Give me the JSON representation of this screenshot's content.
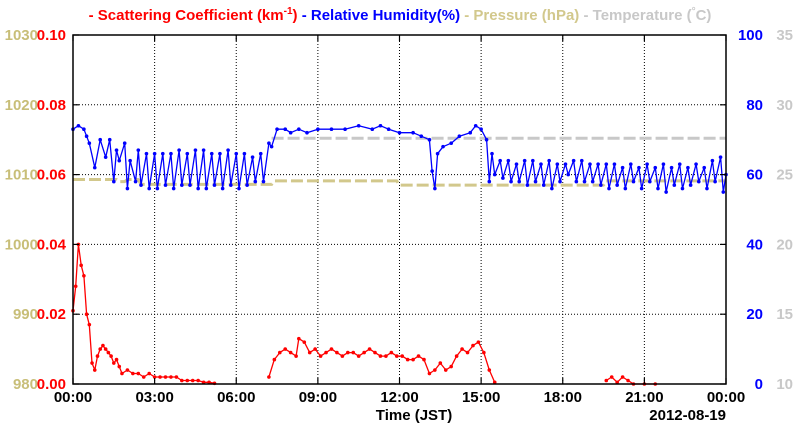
{
  "chart_data": {
    "type": "line",
    "legend": {
      "placement": "top",
      "entries": [
        {
          "label": "Scattering Coefficient (km",
          "sup": "-1",
          "tail": ")",
          "color": "#ff0000"
        },
        {
          "label": "Relative Humidity(%)",
          "color": "#0000ff"
        },
        {
          "label": "Pressure (hPa)",
          "color": "#d2c88c"
        },
        {
          "label": "Temperature (",
          "sup": "°",
          "tail": "C)",
          "color": "#c8c8c8"
        }
      ]
    },
    "xlabel": "Time (JST)",
    "date_label": "2012-08-19",
    "x_unit": "hours",
    "xlim": [
      0,
      24
    ],
    "x_ticks": [
      0,
      3,
      6,
      9,
      12,
      15,
      18,
      21,
      24
    ],
    "x_tick_labels": [
      "00:00",
      "03:00",
      "06:00",
      "09:00",
      "12:00",
      "15:00",
      "18:00",
      "21:00",
      "00:00"
    ],
    "grid": true,
    "axes": {
      "pressure": {
        "side": "left-outer",
        "ylim": [
          980,
          1030
        ],
        "ticks": [
          980,
          990,
          1000,
          1010,
          1020,
          1030
        ],
        "color": "#c8be78"
      },
      "scattering": {
        "side": "left-inner",
        "ylim": [
          0,
          0.1
        ],
        "ticks": [
          "0.00",
          "0.02",
          "0.04",
          "0.06",
          "0.08",
          "0.10"
        ],
        "color": "#ff0000"
      },
      "humidity": {
        "side": "right-inner",
        "ylim": [
          0,
          100
        ],
        "ticks": [
          0,
          20,
          40,
          60,
          80,
          100
        ],
        "color": "#0000ff"
      },
      "temperature": {
        "side": "right-outer",
        "ylim": [
          10,
          35
        ],
        "ticks": [
          10,
          15,
          20,
          25,
          30,
          35
        ],
        "color": "#c8c8c8"
      }
    },
    "series": [
      {
        "name": "Temperature (°C)",
        "axis": "temperature",
        "color": "#c8c8c8",
        "style": "dashed",
        "x": [
          7.3,
          24.0
        ],
        "y": [
          27.6,
          27.6
        ]
      },
      {
        "name": "Pressure (hPa)",
        "axis": "pressure",
        "color": "#d2c88c",
        "style": "dashed",
        "x": [
          0.0,
          1.6,
          1.7,
          1.9,
          2.0,
          2.4,
          2.5,
          7.3,
          7.4,
          11.9,
          12.0,
          19.5,
          19.6,
          24.0
        ],
        "y": [
          1009.3,
          1009.3,
          1009.0,
          1009.0,
          1009.3,
          1009.3,
          1008.6,
          1008.6,
          1009.1,
          1009.1,
          1008.5,
          1008.5,
          1009.1,
          1009.1
        ]
      },
      {
        "name": "Relative Humidity(%)",
        "axis": "humidity",
        "color": "#0000ff",
        "style": "solid",
        "markers": true,
        "x": [
          0.0,
          0.2,
          0.4,
          0.5,
          0.6,
          0.8,
          1.0,
          1.2,
          1.35,
          1.5,
          1.6,
          1.7,
          1.9,
          2.0,
          2.1,
          2.3,
          2.4,
          2.5,
          2.7,
          2.8,
          3.0,
          3.1,
          3.3,
          3.4,
          3.6,
          3.7,
          3.9,
          4.0,
          4.2,
          4.3,
          4.5,
          4.6,
          4.8,
          4.9,
          5.1,
          5.2,
          5.4,
          5.5,
          5.7,
          5.8,
          6.0,
          6.1,
          6.3,
          6.4,
          6.6,
          6.7,
          6.9,
          7.0,
          7.2,
          7.3,
          7.5,
          7.8,
          8.0,
          8.3,
          8.6,
          9.0,
          9.5,
          10.0,
          10.5,
          11.0,
          11.3,
          11.6,
          12.0,
          12.5,
          12.8,
          13.1,
          13.2,
          13.3,
          13.4,
          13.6,
          13.9,
          14.2,
          14.6,
          14.8,
          15.0,
          15.2,
          15.3,
          15.4,
          15.5,
          15.7,
          15.8,
          16.0,
          16.1,
          16.3,
          16.4,
          16.6,
          16.7,
          16.9,
          17.0,
          17.2,
          17.3,
          17.5,
          17.6,
          17.8,
          17.9,
          18.1,
          18.2,
          18.4,
          18.5,
          18.7,
          18.8,
          19.0,
          19.1,
          19.3,
          19.4,
          19.6,
          19.7,
          19.9,
          20.0,
          20.2,
          20.3,
          20.5,
          20.6,
          20.8,
          20.9,
          21.1,
          21.2,
          21.4,
          21.5,
          21.7,
          21.8,
          22.0,
          22.1,
          22.3,
          22.4,
          22.6,
          22.7,
          22.9,
          23.0,
          23.2,
          23.3,
          23.5,
          23.6,
          23.8,
          23.9,
          24.0
        ],
        "y": [
          73,
          74,
          73,
          71,
          69,
          62,
          70,
          65,
          70,
          58,
          67,
          64,
          69,
          56,
          64,
          58,
          67,
          57,
          66,
          56,
          66,
          56,
          66,
          57,
          66,
          56,
          67,
          57,
          66,
          57,
          67,
          56,
          67,
          56,
          66,
          57,
          66,
          56,
          67,
          57,
          66,
          56,
          66,
          57,
          65,
          58,
          66,
          58,
          69,
          68,
          73,
          73,
          72,
          73,
          72,
          73,
          73,
          73,
          74,
          73,
          74,
          73,
          72,
          72,
          71,
          70,
          61,
          56,
          66,
          68,
          69,
          71,
          72,
          74,
          73,
          70,
          58,
          66,
          60,
          64,
          59,
          64,
          58,
          63,
          58,
          64,
          57,
          64,
          58,
          63,
          57,
          64,
          56,
          63,
          58,
          63,
          60,
          64,
          58,
          64,
          58,
          63,
          58,
          63,
          57,
          63,
          56,
          63,
          57,
          62,
          56,
          63,
          58,
          62,
          56,
          63,
          58,
          62,
          56,
          63,
          55,
          62,
          57,
          63,
          56,
          62,
          57,
          63,
          58,
          62,
          56,
          64,
          58,
          65,
          55,
          60
        ]
      },
      {
        "name": "Scattering Coefficient (km-1)",
        "axis": "scattering",
        "color": "#ff0000",
        "style": "solid",
        "markers": true,
        "segments": [
          {
            "x": [
              0.0,
              0.1,
              0.2,
              0.3,
              0.4,
              0.5,
              0.6,
              0.7,
              0.8,
              0.9,
              1.0,
              1.1,
              1.2,
              1.3,
              1.4,
              1.5,
              1.6,
              1.7,
              1.8,
              2.0,
              2.2,
              2.4,
              2.6,
              2.8,
              3.0,
              3.2,
              3.4,
              3.6,
              3.8,
              4.0,
              4.2,
              4.4,
              4.6,
              4.8,
              5.0,
              5.2
            ],
            "y": [
              0.021,
              0.028,
              0.04,
              0.034,
              0.031,
              0.02,
              0.017,
              0.006,
              0.004,
              0.008,
              0.01,
              0.011,
              0.01,
              0.009,
              0.008,
              0.006,
              0.007,
              0.005,
              0.003,
              0.004,
              0.003,
              0.003,
              0.002,
              0.003,
              0.002,
              0.002,
              0.002,
              0.002,
              0.002,
              0.001,
              0.001,
              0.001,
              0.001,
              0.0005,
              0.0005,
              0.0002
            ]
          },
          {
            "x": [
              7.2,
              7.4,
              7.6,
              7.8,
              8.0,
              8.2,
              8.3,
              8.5,
              8.7,
              8.9,
              9.1,
              9.3,
              9.5,
              9.7,
              9.9,
              10.1,
              10.3,
              10.5,
              10.7,
              10.9,
              11.1,
              11.3,
              11.5,
              11.7,
              11.9,
              12.1,
              12.3,
              12.5,
              12.7,
              12.9,
              13.1,
              13.3,
              13.5,
              13.7,
              13.9,
              14.1,
              14.3,
              14.5,
              14.7,
              14.9,
              15.1,
              15.3,
              15.5
            ],
            "y": [
              0.002,
              0.007,
              0.009,
              0.01,
              0.009,
              0.008,
              0.013,
              0.012,
              0.009,
              0.01,
              0.008,
              0.009,
              0.01,
              0.009,
              0.008,
              0.009,
              0.009,
              0.008,
              0.009,
              0.01,
              0.009,
              0.008,
              0.008,
              0.009,
              0.008,
              0.008,
              0.007,
              0.007,
              0.008,
              0.007,
              0.003,
              0.004,
              0.006,
              0.004,
              0.005,
              0.008,
              0.01,
              0.009,
              0.011,
              0.012,
              0.009,
              0.004,
              0.0005
            ]
          },
          {
            "x": [
              19.6,
              19.8,
              20.0,
              20.2,
              20.4,
              20.6,
              21.0,
              21.4
            ],
            "y": [
              0.001,
              0.002,
              0.0005,
              0.002,
              0.001,
              0.0,
              0.0,
              0.0
            ]
          }
        ]
      }
    ]
  }
}
